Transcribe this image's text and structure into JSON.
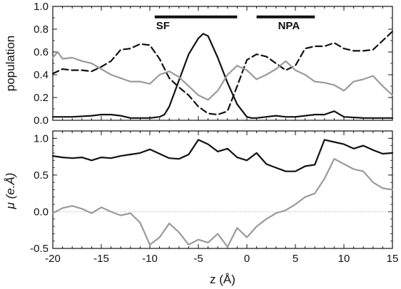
{
  "chart_data": [
    {
      "type": "line",
      "ylabel": "population",
      "xlim": [
        -20,
        15
      ],
      "ylim": [
        0,
        1
      ],
      "yticks": [
        "0.0",
        "0.2",
        "0.4",
        "0.6",
        "0.8",
        "1.0"
      ],
      "ytick_values": [
        0,
        0.2,
        0.4,
        0.6,
        0.8,
        1.0
      ],
      "annotations": [
        {
          "text": "SF",
          "x_start": -9.5,
          "x_end": -1.0,
          "y": 0.92
        },
        {
          "text": "NPA",
          "x_start": 1.0,
          "x_end": 7.0,
          "y": 0.92
        }
      ],
      "series": [
        {
          "style": "solid",
          "color": "#111111",
          "x": [
            -20,
            -18,
            -16,
            -15,
            -14,
            -13,
            -12,
            -11,
            -10,
            -9,
            -8.5,
            -8,
            -7,
            -6,
            -5,
            -4.5,
            -4,
            -3,
            -2,
            -1,
            0,
            0.5,
            1,
            2,
            3,
            4,
            5,
            6,
            7,
            8,
            9,
            10,
            12,
            13,
            15
          ],
          "y": [
            0.03,
            0.03,
            0.04,
            0.05,
            0.05,
            0.04,
            0.02,
            0.02,
            0.02,
            0.03,
            0.05,
            0.12,
            0.35,
            0.58,
            0.72,
            0.76,
            0.74,
            0.55,
            0.33,
            0.14,
            0.03,
            0.02,
            0.02,
            0.03,
            0.04,
            0.03,
            0.03,
            0.04,
            0.05,
            0.05,
            0.08,
            0.03,
            0.02,
            0.02,
            0.02
          ]
        },
        {
          "style": "dashed",
          "color": "#111111",
          "x": [
            -20,
            -19,
            -18,
            -17,
            -16,
            -15,
            -14,
            -13,
            -12,
            -11,
            -10,
            -9,
            -8,
            -7,
            -6,
            -5,
            -4,
            -3,
            -2,
            -1,
            0,
            1,
            2,
            3,
            4,
            5,
            6,
            7,
            8,
            9,
            10,
            11,
            12,
            13,
            14,
            15
          ],
          "y": [
            0.41,
            0.45,
            0.44,
            0.44,
            0.43,
            0.47,
            0.52,
            0.62,
            0.63,
            0.67,
            0.66,
            0.54,
            0.37,
            0.29,
            0.22,
            0.12,
            0.06,
            0.05,
            0.08,
            0.3,
            0.53,
            0.58,
            0.56,
            0.5,
            0.44,
            0.48,
            0.63,
            0.65,
            0.65,
            0.68,
            0.63,
            0.61,
            0.61,
            0.62,
            0.7,
            0.78
          ]
        },
        {
          "style": "solid",
          "color": "#9a9a9a",
          "x": [
            -20,
            -19.5,
            -19,
            -18,
            -17,
            -16,
            -15,
            -14,
            -13,
            -12,
            -11,
            -10,
            -9,
            -8,
            -7,
            -6,
            -5,
            -4,
            -3,
            -2,
            -1,
            0,
            1,
            2,
            3,
            4,
            5,
            6,
            7,
            8,
            9,
            10,
            11,
            12,
            13,
            14,
            15
          ],
          "y": [
            0.55,
            0.6,
            0.54,
            0.55,
            0.52,
            0.5,
            0.45,
            0.4,
            0.37,
            0.34,
            0.34,
            0.32,
            0.4,
            0.43,
            0.38,
            0.3,
            0.22,
            0.18,
            0.26,
            0.4,
            0.48,
            0.44,
            0.36,
            0.4,
            0.45,
            0.52,
            0.44,
            0.4,
            0.34,
            0.33,
            0.31,
            0.26,
            0.34,
            0.36,
            0.39,
            0.3,
            0.22
          ]
        }
      ]
    },
    {
      "type": "line",
      "ylabel": "μ (e.Å)",
      "xlabel": "z (Å)",
      "xlim": [
        -20,
        15
      ],
      "ylim": [
        -0.5,
        1.1
      ],
      "xticks": [
        "-20",
        "-15",
        "-10",
        "-5",
        "0",
        "5",
        "10",
        "15"
      ],
      "xtick_values": [
        -20,
        -15,
        -10,
        -5,
        0,
        5,
        10,
        15
      ],
      "yticks": [
        "-0.5",
        "0.0",
        "0.5",
        "1.0"
      ],
      "ytick_values": [
        -0.5,
        0,
        0.5,
        1.0
      ],
      "reference_line": 0,
      "series": [
        {
          "style": "solid",
          "color": "#111111",
          "x": [
            -20,
            -19,
            -18,
            -17,
            -16,
            -15,
            -14,
            -13,
            -12,
            -11,
            -10,
            -9,
            -8,
            -7,
            -6,
            -5,
            -4,
            -3,
            -2,
            -1,
            0,
            1,
            2,
            3,
            4,
            5,
            6,
            7,
            8,
            9,
            10,
            11,
            12,
            13,
            14,
            15
          ],
          "y": [
            0.76,
            0.74,
            0.73,
            0.74,
            0.7,
            0.74,
            0.73,
            0.76,
            0.78,
            0.8,
            0.85,
            0.79,
            0.73,
            0.72,
            0.78,
            0.98,
            0.92,
            0.82,
            0.86,
            0.74,
            0.7,
            0.8,
            0.65,
            0.6,
            0.55,
            0.55,
            0.62,
            0.64,
            0.98,
            0.95,
            0.92,
            0.86,
            0.9,
            0.84,
            0.79,
            0.8
          ]
        },
        {
          "style": "solid",
          "color": "#9a9a9a",
          "x": [
            -20,
            -19,
            -18,
            -17,
            -16,
            -15,
            -14,
            -13,
            -12,
            -11,
            -10,
            -9,
            -8,
            -7,
            -6,
            -5,
            -4,
            -3,
            -2,
            -1,
            0,
            1,
            2,
            3,
            4,
            5,
            6,
            7,
            8,
            9,
            10,
            11,
            12,
            13,
            14,
            15
          ],
          "y": [
            -0.02,
            0.05,
            0.08,
            0.04,
            -0.02,
            0.06,
            0.0,
            -0.05,
            -0.02,
            -0.15,
            -0.45,
            -0.35,
            -0.16,
            -0.28,
            -0.45,
            -0.38,
            -0.42,
            -0.3,
            -0.48,
            -0.22,
            -0.35,
            -0.2,
            -0.1,
            -0.02,
            0.02,
            0.1,
            0.2,
            0.25,
            0.45,
            0.72,
            0.65,
            0.58,
            0.55,
            0.4,
            0.32,
            0.3
          ]
        }
      ]
    }
  ]
}
